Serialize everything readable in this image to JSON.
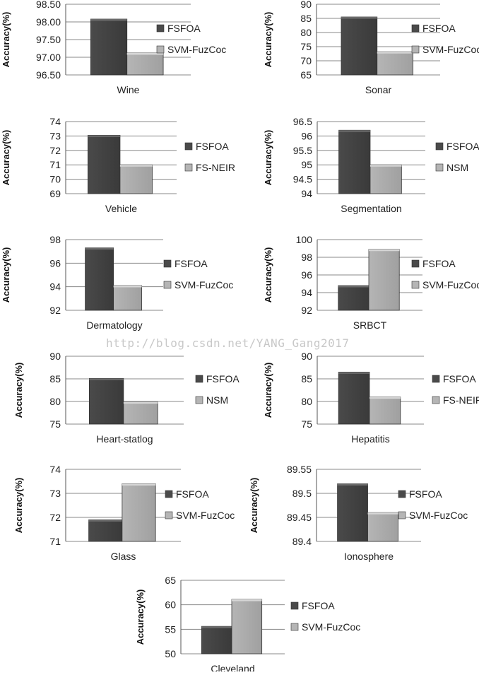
{
  "watermark": "http://blog.csdn.net/YANG_Gang2017",
  "colors": {
    "dark_bar": "#4a4a4a",
    "dark_bar_top": "#6a6a6a",
    "light_bar": "#b5b5b5",
    "light_bar_top": "#d6d6d6",
    "gridline": "#8a8a8a"
  },
  "chart_data": [
    {
      "type": "bar",
      "xlabel": "Wine",
      "ylabel": "Accuracy(%)",
      "ylim": [
        96.5,
        98.5
      ],
      "ticks": [
        "96.50",
        "97.00",
        "97.50",
        "98.00",
        "98.50"
      ],
      "series": [
        {
          "name": "FSFOA",
          "values": [
            98.08
          ]
        },
        {
          "name": "SVM-FuzCoc",
          "values": [
            97.12
          ]
        }
      ],
      "grid": true,
      "legend": "right"
    },
    {
      "type": "bar",
      "xlabel": "Sonar",
      "ylabel": "Accuracy(%)",
      "ylim": [
        65,
        90
      ],
      "ticks": [
        "65",
        "70",
        "75",
        "80",
        "85",
        "90"
      ],
      "series": [
        {
          "name": "FSFOA",
          "values": [
            85.5
          ]
        },
        {
          "name": "SVM-FuzCoc",
          "values": [
            73.2
          ]
        }
      ],
      "grid": true,
      "legend": "right"
    },
    {
      "type": "bar",
      "xlabel": "Vehicle",
      "ylabel": "Accuracy(%)",
      "ylim": [
        69,
        74
      ],
      "ticks": [
        "69",
        "70",
        "71",
        "72",
        "73",
        "74"
      ],
      "series": [
        {
          "name": "FSFOA",
          "values": [
            73.05
          ]
        },
        {
          "name": "FS-NEIR",
          "values": [
            71.0
          ]
        }
      ],
      "grid": true,
      "legend": "right"
    },
    {
      "type": "bar",
      "xlabel": "Segmentation",
      "ylabel": "Accuracy(%)",
      "ylim": [
        94,
        96.5
      ],
      "ticks": [
        "94",
        "94.5",
        "95",
        "95.5",
        "96",
        "96.5"
      ],
      "series": [
        {
          "name": "FSFOA",
          "values": [
            96.2
          ]
        },
        {
          "name": "NSM",
          "values": [
            95.0
          ]
        }
      ],
      "grid": true,
      "legend": "right"
    },
    {
      "type": "bar",
      "xlabel": "Dermatology",
      "ylabel": "Accuracy(%)",
      "ylim": [
        92,
        98
      ],
      "ticks": [
        "92",
        "94",
        "96",
        "98"
      ],
      "series": [
        {
          "name": "FSFOA",
          "values": [
            97.3
          ]
        },
        {
          "name": "SVM-FuzCoc",
          "values": [
            94.1
          ]
        }
      ],
      "grid": true,
      "legend": "right"
    },
    {
      "type": "bar",
      "xlabel": "SRBCT",
      "ylabel": "Accuracy(%)",
      "ylim": [
        92,
        100
      ],
      "ticks": [
        "92",
        "94",
        "96",
        "98",
        "100"
      ],
      "series": [
        {
          "name": "FSFOA",
          "values": [
            94.8
          ]
        },
        {
          "name": "SVM-FuzCoc",
          "values": [
            98.9
          ]
        }
      ],
      "grid": true,
      "legend": "right"
    },
    {
      "type": "bar",
      "xlabel": "Heart-statlog",
      "ylabel": "Accuracy(%)",
      "ylim": [
        75,
        90
      ],
      "ticks": [
        "75",
        "80",
        "85",
        "90"
      ],
      "series": [
        {
          "name": "FSFOA",
          "values": [
            85.1
          ]
        },
        {
          "name": "NSM",
          "values": [
            79.9
          ]
        }
      ],
      "grid": true,
      "legend": "right"
    },
    {
      "type": "bar",
      "xlabel": "Hepatitis",
      "ylabel": "Accuracy(%)",
      "ylim": [
        75,
        90
      ],
      "ticks": [
        "75",
        "80",
        "85",
        "90"
      ],
      "series": [
        {
          "name": "FSFOA",
          "values": [
            86.5
          ]
        },
        {
          "name": "FS-NEIR",
          "values": [
            81.0
          ]
        }
      ],
      "grid": true,
      "legend": "right"
    },
    {
      "type": "bar",
      "xlabel": "Glass",
      "ylabel": "Accuracy(%)",
      "ylim": [
        71,
        74
      ],
      "ticks": [
        "71",
        "72",
        "73",
        "74"
      ],
      "series": [
        {
          "name": "FSFOA",
          "values": [
            71.9
          ]
        },
        {
          "name": "SVM-FuzCoc",
          "values": [
            73.4
          ]
        }
      ],
      "grid": true,
      "legend": "right"
    },
    {
      "type": "bar",
      "xlabel": "Ionosphere",
      "ylabel": "Accuracy(%)",
      "ylim": [
        89.4,
        89.55
      ],
      "ticks": [
        "89.4",
        "89.45",
        "89.5",
        "89.55"
      ],
      "series": [
        {
          "name": "FSFOA",
          "values": [
            89.52
          ]
        },
        {
          "name": "SVM-FuzCoc",
          "values": [
            89.46
          ]
        }
      ],
      "grid": true,
      "legend": "right"
    },
    {
      "type": "bar",
      "xlabel": "Cleveland",
      "ylabel": "Accuracy(%)",
      "ylim": [
        50,
        65
      ],
      "ticks": [
        "50",
        "55",
        "60",
        "65"
      ],
      "series": [
        {
          "name": "FSFOA",
          "values": [
            55.6
          ]
        },
        {
          "name": "SVM-FuzCoc",
          "values": [
            61.1
          ]
        }
      ],
      "grid": true,
      "legend": "right"
    }
  ]
}
